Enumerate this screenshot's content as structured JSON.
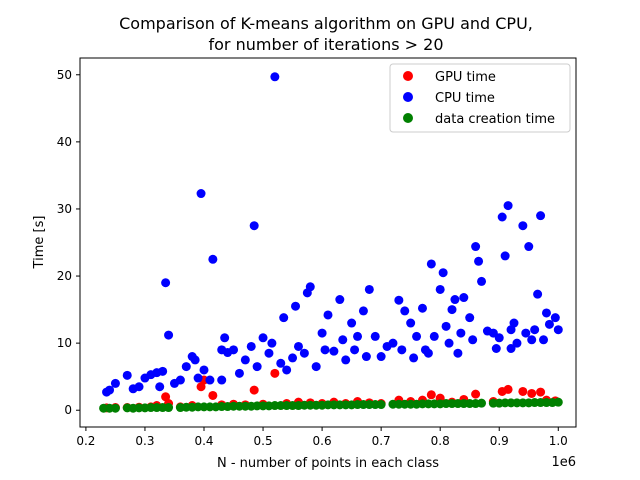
{
  "chart_data": {
    "type": "scatter",
    "title": "Comparison of K-means algorithm on GPU and CPU,",
    "subtitle": "for number of iterations > 20",
    "xlabel": "N - number of points in each class",
    "ylabel": "Time [s]",
    "x_offset_label": "1e6",
    "xlim": [
      0.19,
      1.03
    ],
    "ylim": [
      -2.5,
      52.5
    ],
    "x_ticks": [
      0.2,
      0.3,
      0.4,
      0.5,
      0.6,
      0.7,
      0.8,
      0.9,
      1.0
    ],
    "x_tick_labels": [
      "0.2",
      "0.3",
      "0.4",
      "0.5",
      "0.6",
      "0.7",
      "0.8",
      "0.9",
      "1.0"
    ],
    "y_ticks": [
      0,
      10,
      20,
      30,
      40,
      50
    ],
    "y_tick_labels": [
      "0",
      "10",
      "20",
      "30",
      "40",
      "50"
    ],
    "grid": false,
    "legend_position": "top-right",
    "series": [
      {
        "name": "GPU time",
        "color": "#ff0000",
        "points": [
          [
            0.235,
            0.35
          ],
          [
            0.25,
            0.4
          ],
          [
            0.27,
            0.4
          ],
          [
            0.29,
            0.45
          ],
          [
            0.31,
            0.5
          ],
          [
            0.32,
            0.7
          ],
          [
            0.335,
            2.0
          ],
          [
            0.34,
            1.0
          ],
          [
            0.36,
            0.5
          ],
          [
            0.38,
            0.7
          ],
          [
            0.395,
            3.5
          ],
          [
            0.4,
            4.5
          ],
          [
            0.415,
            2.2
          ],
          [
            0.43,
            0.8
          ],
          [
            0.45,
            0.9
          ],
          [
            0.47,
            0.8
          ],
          [
            0.485,
            3.0
          ],
          [
            0.5,
            0.9
          ],
          [
            0.52,
            5.5
          ],
          [
            0.54,
            1.0
          ],
          [
            0.56,
            1.2
          ],
          [
            0.58,
            1.1
          ],
          [
            0.6,
            1.0
          ],
          [
            0.62,
            1.2
          ],
          [
            0.64,
            1.0
          ],
          [
            0.66,
            1.3
          ],
          [
            0.68,
            1.1
          ],
          [
            0.7,
            1.0
          ],
          [
            0.73,
            1.5
          ],
          [
            0.75,
            1.3
          ],
          [
            0.77,
            1.5
          ],
          [
            0.785,
            2.3
          ],
          [
            0.8,
            1.8
          ],
          [
            0.82,
            1.2
          ],
          [
            0.84,
            1.6
          ],
          [
            0.86,
            2.4
          ],
          [
            0.89,
            1.3
          ],
          [
            0.905,
            2.8
          ],
          [
            0.915,
            3.1
          ],
          [
            0.94,
            2.8
          ],
          [
            0.955,
            2.5
          ],
          [
            0.97,
            2.7
          ],
          [
            0.98,
            1.5
          ],
          [
            0.995,
            1.4
          ]
        ]
      },
      {
        "name": "CPU time",
        "color": "#0000ff",
        "points": [
          [
            0.235,
            2.7
          ],
          [
            0.24,
            3.0
          ],
          [
            0.25,
            4.0
          ],
          [
            0.27,
            5.2
          ],
          [
            0.28,
            3.2
          ],
          [
            0.29,
            3.5
          ],
          [
            0.3,
            4.8
          ],
          [
            0.31,
            5.3
          ],
          [
            0.32,
            5.6
          ],
          [
            0.325,
            3.5
          ],
          [
            0.33,
            5.8
          ],
          [
            0.335,
            19.0
          ],
          [
            0.34,
            11.2
          ],
          [
            0.35,
            4.0
          ],
          [
            0.36,
            4.5
          ],
          [
            0.37,
            6.5
          ],
          [
            0.38,
            8.0
          ],
          [
            0.385,
            7.5
          ],
          [
            0.39,
            4.8
          ],
          [
            0.395,
            32.3
          ],
          [
            0.4,
            6.0
          ],
          [
            0.41,
            4.5
          ],
          [
            0.415,
            22.5
          ],
          [
            0.43,
            4.5
          ],
          [
            0.435,
            10.8
          ],
          [
            0.44,
            8.6
          ],
          [
            0.45,
            9.0
          ],
          [
            0.46,
            5.5
          ],
          [
            0.47,
            7.5
          ],
          [
            0.48,
            9.5
          ],
          [
            0.485,
            27.5
          ],
          [
            0.49,
            6.5
          ],
          [
            0.5,
            10.8
          ],
          [
            0.51,
            8.5
          ],
          [
            0.515,
            10.0
          ],
          [
            0.52,
            49.7
          ],
          [
            0.53,
            7.0
          ],
          [
            0.535,
            13.8
          ],
          [
            0.54,
            6.0
          ],
          [
            0.55,
            7.8
          ],
          [
            0.555,
            15.5
          ],
          [
            0.56,
            9.5
          ],
          [
            0.57,
            8.5
          ],
          [
            0.575,
            17.5
          ],
          [
            0.58,
            18.4
          ],
          [
            0.59,
            6.5
          ],
          [
            0.6,
            11.5
          ],
          [
            0.605,
            9.0
          ],
          [
            0.61,
            14.2
          ],
          [
            0.62,
            8.8
          ],
          [
            0.63,
            16.5
          ],
          [
            0.635,
            10.5
          ],
          [
            0.64,
            7.5
          ],
          [
            0.65,
            13.0
          ],
          [
            0.655,
            9.0
          ],
          [
            0.66,
            11.0
          ],
          [
            0.67,
            14.8
          ],
          [
            0.675,
            8.0
          ],
          [
            0.68,
            18.0
          ],
          [
            0.69,
            11.0
          ],
          [
            0.7,
            8.0
          ],
          [
            0.71,
            9.5
          ],
          [
            0.72,
            10.0
          ],
          [
            0.73,
            16.4
          ],
          [
            0.735,
            9.0
          ],
          [
            0.74,
            14.8
          ],
          [
            0.75,
            13.0
          ],
          [
            0.755,
            7.8
          ],
          [
            0.76,
            11.0
          ],
          [
            0.77,
            15.2
          ],
          [
            0.775,
            9.0
          ],
          [
            0.78,
            8.5
          ],
          [
            0.785,
            21.8
          ],
          [
            0.79,
            11.0
          ],
          [
            0.8,
            18.0
          ],
          [
            0.805,
            20.5
          ],
          [
            0.81,
            12.5
          ],
          [
            0.815,
            10.0
          ],
          [
            0.82,
            15.0
          ],
          [
            0.825,
            16.5
          ],
          [
            0.83,
            8.5
          ],
          [
            0.835,
            11.5
          ],
          [
            0.84,
            16.8
          ],
          [
            0.85,
            13.8
          ],
          [
            0.855,
            10.5
          ],
          [
            0.86,
            24.4
          ],
          [
            0.865,
            22.2
          ],
          [
            0.87,
            19.2
          ],
          [
            0.89,
            11.5
          ],
          [
            0.895,
            9.2
          ],
          [
            0.9,
            10.8
          ],
          [
            0.905,
            28.8
          ],
          [
            0.91,
            23.0
          ],
          [
            0.915,
            30.5
          ],
          [
            0.92,
            9.2
          ],
          [
            0.925,
            13.0
          ],
          [
            0.93,
            10.0
          ],
          [
            0.94,
            27.5
          ],
          [
            0.945,
            11.5
          ],
          [
            0.95,
            24.4
          ],
          [
            0.955,
            10.5
          ],
          [
            0.96,
            12.0
          ],
          [
            0.965,
            17.3
          ],
          [
            0.97,
            29.0
          ],
          [
            0.975,
            10.5
          ],
          [
            0.98,
            14.5
          ],
          [
            0.985,
            12.8
          ],
          [
            0.995,
            13.8
          ],
          [
            1.0,
            12.0
          ],
          [
            0.92,
            12.0
          ],
          [
            0.88,
            11.8
          ],
          [
            0.43,
            9.0
          ]
        ]
      },
      {
        "name": "data creation time",
        "color": "#008000",
        "points": [
          [
            0.23,
            0.3
          ],
          [
            0.24,
            0.3
          ],
          [
            0.25,
            0.3
          ],
          [
            0.27,
            0.35
          ],
          [
            0.28,
            0.3
          ],
          [
            0.29,
            0.35
          ],
          [
            0.3,
            0.35
          ],
          [
            0.31,
            0.4
          ],
          [
            0.32,
            0.4
          ],
          [
            0.33,
            0.4
          ],
          [
            0.34,
            0.4
          ],
          [
            0.36,
            0.4
          ],
          [
            0.37,
            0.45
          ],
          [
            0.38,
            0.45
          ],
          [
            0.39,
            0.5
          ],
          [
            0.4,
            0.5
          ],
          [
            0.41,
            0.5
          ],
          [
            0.42,
            0.5
          ],
          [
            0.43,
            0.55
          ],
          [
            0.44,
            0.55
          ],
          [
            0.45,
            0.6
          ],
          [
            0.46,
            0.6
          ],
          [
            0.47,
            0.6
          ],
          [
            0.48,
            0.6
          ],
          [
            0.49,
            0.65
          ],
          [
            0.5,
            0.65
          ],
          [
            0.51,
            0.65
          ],
          [
            0.52,
            0.7
          ],
          [
            0.53,
            0.7
          ],
          [
            0.54,
            0.7
          ],
          [
            0.55,
            0.7
          ],
          [
            0.56,
            0.7
          ],
          [
            0.57,
            0.75
          ],
          [
            0.58,
            0.75
          ],
          [
            0.59,
            0.75
          ],
          [
            0.6,
            0.75
          ],
          [
            0.61,
            0.8
          ],
          [
            0.62,
            0.8
          ],
          [
            0.63,
            0.8
          ],
          [
            0.64,
            0.8
          ],
          [
            0.65,
            0.8
          ],
          [
            0.66,
            0.85
          ],
          [
            0.67,
            0.85
          ],
          [
            0.68,
            0.85
          ],
          [
            0.69,
            0.85
          ],
          [
            0.7,
            0.85
          ],
          [
            0.72,
            0.9
          ],
          [
            0.73,
            0.9
          ],
          [
            0.74,
            0.9
          ],
          [
            0.75,
            0.9
          ],
          [
            0.76,
            0.9
          ],
          [
            0.77,
            0.95
          ],
          [
            0.78,
            0.95
          ],
          [
            0.79,
            0.95
          ],
          [
            0.8,
            0.95
          ],
          [
            0.81,
            1.0
          ],
          [
            0.82,
            1.0
          ],
          [
            0.83,
            1.0
          ],
          [
            0.84,
            1.0
          ],
          [
            0.85,
            1.0
          ],
          [
            0.86,
            1.0
          ],
          [
            0.87,
            1.05
          ],
          [
            0.89,
            1.05
          ],
          [
            0.9,
            1.05
          ],
          [
            0.91,
            1.1
          ],
          [
            0.92,
            1.1
          ],
          [
            0.93,
            1.1
          ],
          [
            0.94,
            1.1
          ],
          [
            0.95,
            1.1
          ],
          [
            0.96,
            1.15
          ],
          [
            0.97,
            1.15
          ],
          [
            0.98,
            1.15
          ],
          [
            0.99,
            1.15
          ],
          [
            1.0,
            1.2
          ]
        ]
      }
    ]
  }
}
